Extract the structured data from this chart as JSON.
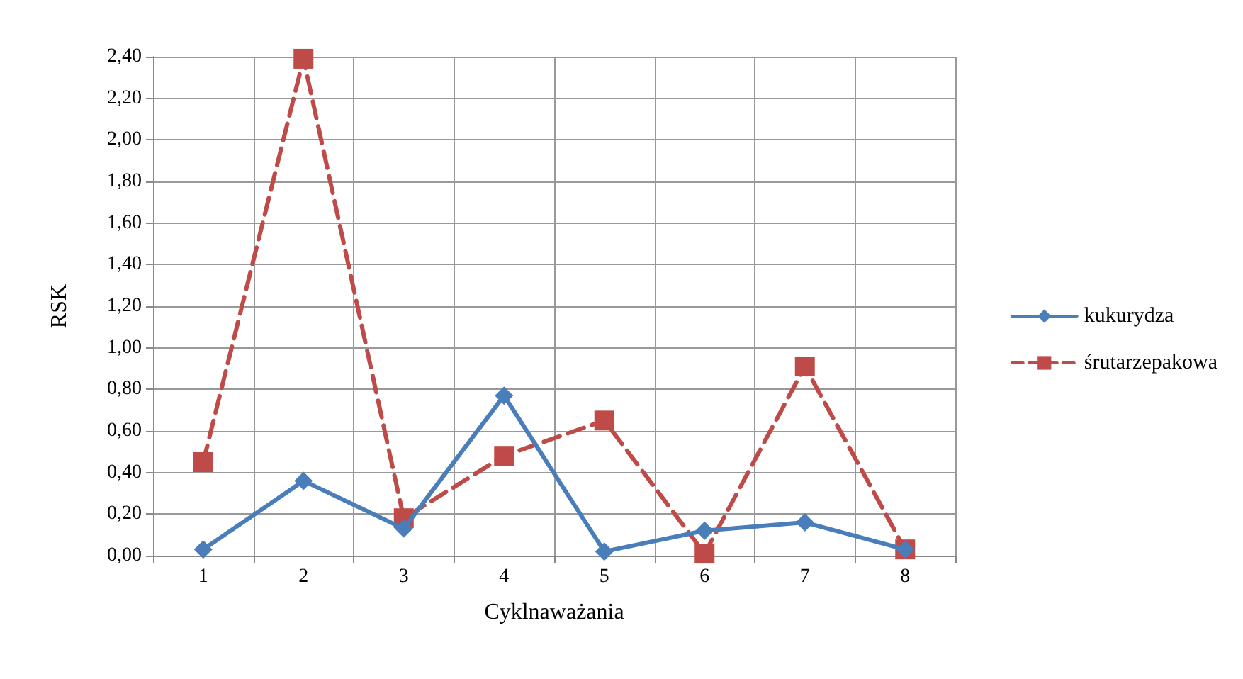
{
  "chart_data": {
    "type": "line",
    "xlabel": "Cyklnaważania",
    "ylabel": "RSK",
    "categories": [
      "1",
      "2",
      "3",
      "4",
      "5",
      "6",
      "7",
      "8"
    ],
    "series": [
      {
        "name": "kukurydza",
        "color": "#4a7ebb",
        "marker": "diamond",
        "line_style": "solid",
        "values": [
          0.03,
          0.36,
          0.13,
          0.77,
          0.02,
          0.12,
          0.16,
          0.03
        ]
      },
      {
        "name": "śrutarzepakowa",
        "color": "#be4b48",
        "marker": "square",
        "line_style": "dashed",
        "values": [
          0.45,
          2.39,
          0.18,
          0.48,
          0.65,
          0.01,
          0.91,
          0.03
        ]
      }
    ],
    "ylim": [
      0,
      2.4
    ],
    "yticks": [
      {
        "value": 0,
        "label": "0,00"
      },
      {
        "value": 0.2,
        "label": "0,20"
      },
      {
        "value": 0.4,
        "label": "0,40"
      },
      {
        "value": 0.6,
        "label": "0,60"
      },
      {
        "value": 0.8,
        "label": "0,80"
      },
      {
        "value": 1,
        "label": "1,00"
      },
      {
        "value": 1.2,
        "label": "1,20"
      },
      {
        "value": 1.4,
        "label": "1,40"
      },
      {
        "value": 1.6,
        "label": "1,60"
      },
      {
        "value": 1.8,
        "label": "1,80"
      },
      {
        "value": 2,
        "label": "2,00"
      },
      {
        "value": 2.2,
        "label": "2,20"
      },
      {
        "value": 2.4,
        "label": "2,40"
      }
    ],
    "grid": true,
    "legend": "right"
  }
}
